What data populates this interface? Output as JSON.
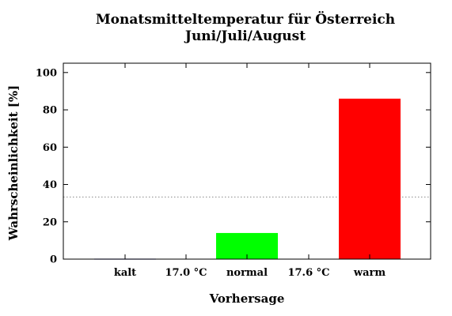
{
  "chart_data": {
    "type": "bar",
    "title": "Monatsmitteltemperatur für Österreich",
    "subtitle": "Juni/Juli/August",
    "xlabel": "Vorhersage",
    "ylabel": "Wahrscheinlichkeit [%]",
    "ylim": [
      0,
      105
    ],
    "yticks": [
      0,
      20,
      40,
      60,
      80,
      100
    ],
    "grid": false,
    "reference_line": 33.3,
    "categories": [
      "kalt",
      "normal",
      "warm"
    ],
    "values": [
      0,
      14,
      86
    ],
    "colors": [
      "#7b7bd6",
      "#00ff00",
      "#ff0000"
    ],
    "threshold_labels": [
      "17.0 °C",
      "17.6 °C"
    ]
  }
}
